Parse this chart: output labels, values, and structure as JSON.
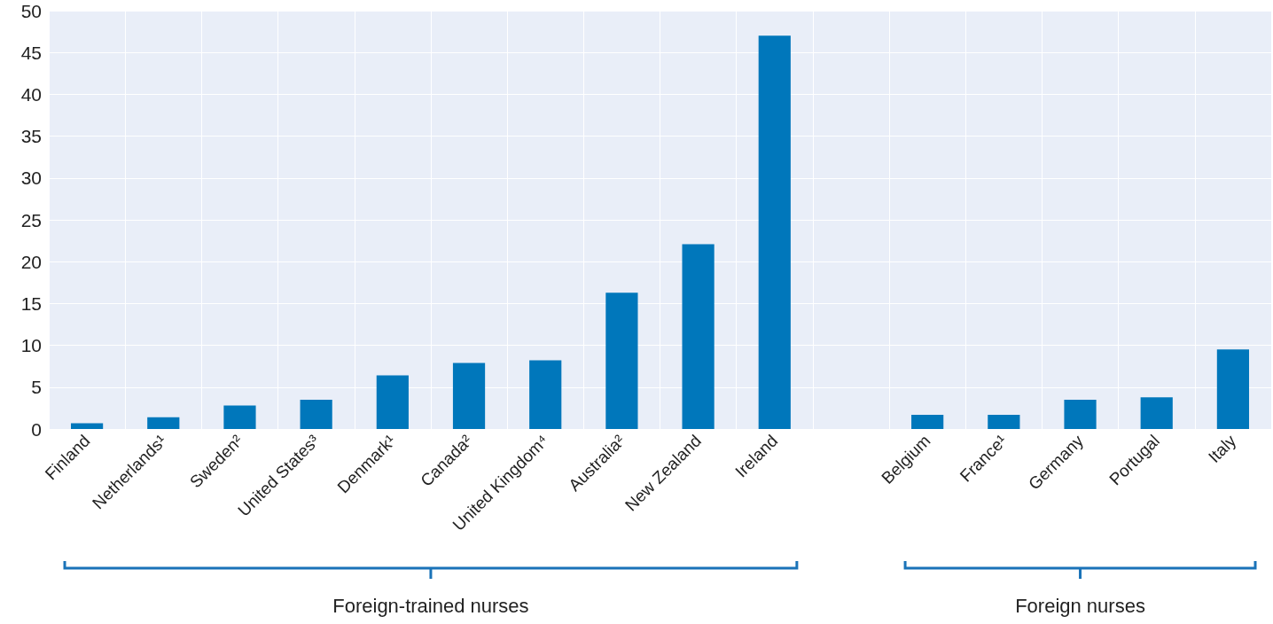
{
  "chart_data": {
    "type": "bar",
    "categories": [
      "Finland",
      "Netherlands¹",
      "Sweden²",
      "United States³",
      "Denmark¹",
      "Canada²",
      "United Kingdom⁴",
      "Australia²",
      "New Zealand",
      "Ireland",
      null,
      "Belgium",
      "France¹",
      "Germany",
      "Portugal",
      "Italy"
    ],
    "values": [
      0.7,
      1.4,
      2.8,
      3.5,
      6.4,
      7.9,
      8.2,
      16.3,
      22.1,
      47.0,
      null,
      1.7,
      1.7,
      3.5,
      3.8,
      9.5
    ],
    "color": "#0077bb",
    "ylim": [
      0,
      50
    ],
    "yticks": [
      0,
      5,
      10,
      15,
      20,
      25,
      30,
      35,
      40,
      45,
      50
    ],
    "grid": true,
    "annotations": [
      "Foreign-trained nurses",
      "Foreign nurses"
    ]
  }
}
